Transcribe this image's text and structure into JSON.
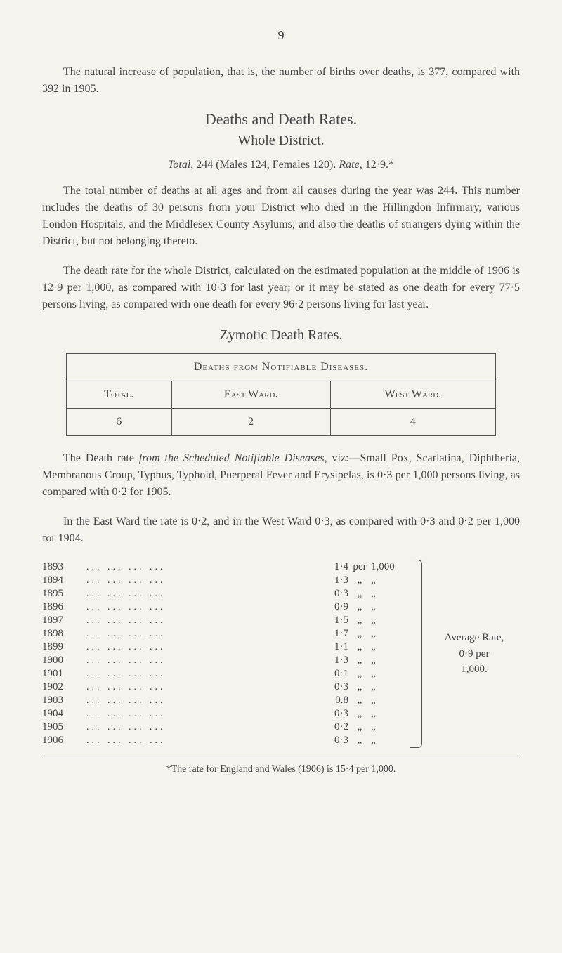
{
  "page_number": "9",
  "intro_para": "The natural increase of population, that is, the number of births over deaths, is 377, compared with 392 in 1905.",
  "heading1": "Deaths and Death Rates.",
  "heading2": "Whole District.",
  "total_line_prefix": "Total",
  "total_line_rest": ", 244 (Males 124, Females 120). ",
  "total_line_rate_label": "Rate",
  "total_line_rate_val": ", 12·9.*",
  "para2": "The total number of deaths at all ages and from all causes during the year was 244. This number includes the deaths of 30 persons from your District who died in the Hillingdon Infirmary, various London Hospitals, and the Middlesex County Asylums; and also the deaths of strangers dying within the District, but not belonging thereto.",
  "para3": "The death rate for the whole District, calculated on the estimated population at the middle of 1906 is 12·9 per 1,000, as compared with 10·3 for last year; or it may be stated as one death for every 77·5 persons living, as compared with one death for every 96·2 persons living for last year.",
  "zymotic_heading": "Zymotic Death Rates.",
  "table": {
    "title": "Deaths from Notifiable Diseases.",
    "col1": "Total.",
    "col2": "East Ward.",
    "col3": "West Ward.",
    "v1": "6",
    "v2": "2",
    "v3": "4"
  },
  "para4a": "The Death rate ",
  "para4b_italic": "from the Scheduled Notifiable Diseases",
  "para4c": ", viz:—Small Pox, Scarlatina, Diphtheria, Membranous Croup, Typhus, Typhoid, Puerperal Fever and Erysipelas, is 0·3 per 1,000 persons living, as compared with 0·2 for 1905.",
  "para5": "In the East Ward the rate is 0·2, and in the West Ward 0·3, as compared with 0·3 and 0·2 per 1,000 for 1904.",
  "rates": {
    "rows": [
      {
        "year": "1893",
        "value": "1·4",
        "per": "per",
        "unit": "1,000"
      },
      {
        "year": "1894",
        "value": "1·3",
        "per": "„",
        "unit": "„"
      },
      {
        "year": "1895",
        "value": "0·3",
        "per": "„",
        "unit": "„"
      },
      {
        "year": "1896",
        "value": "0·9",
        "per": "„",
        "unit": "„"
      },
      {
        "year": "1897",
        "value": "1·5",
        "per": "„",
        "unit": "„"
      },
      {
        "year": "1898",
        "value": "1·7",
        "per": "„",
        "unit": "„"
      },
      {
        "year": "1899",
        "value": "1·1",
        "per": "„",
        "unit": "„"
      },
      {
        "year": "1900",
        "value": "1·3",
        "per": "„",
        "unit": "„"
      },
      {
        "year": "1901",
        "value": "0·1",
        "per": "„",
        "unit": "„"
      },
      {
        "year": "1902",
        "value": "0·3",
        "per": "„",
        "unit": "„"
      },
      {
        "year": "1903",
        "value": "0.8",
        "per": "„",
        "unit": "„"
      },
      {
        "year": "1904",
        "value": "0·3",
        "per": "„",
        "unit": "„"
      },
      {
        "year": "1905",
        "value": "0·2",
        "per": "„",
        "unit": "„"
      },
      {
        "year": "1906",
        "value": "0·3",
        "per": "„",
        "unit": "„"
      }
    ],
    "average_label_1": "Average Rate,",
    "average_label_2": "0·9 per",
    "average_label_3": "1,000."
  },
  "footnote": "*The rate for England and Wales (1906) is 15·4 per 1,000."
}
